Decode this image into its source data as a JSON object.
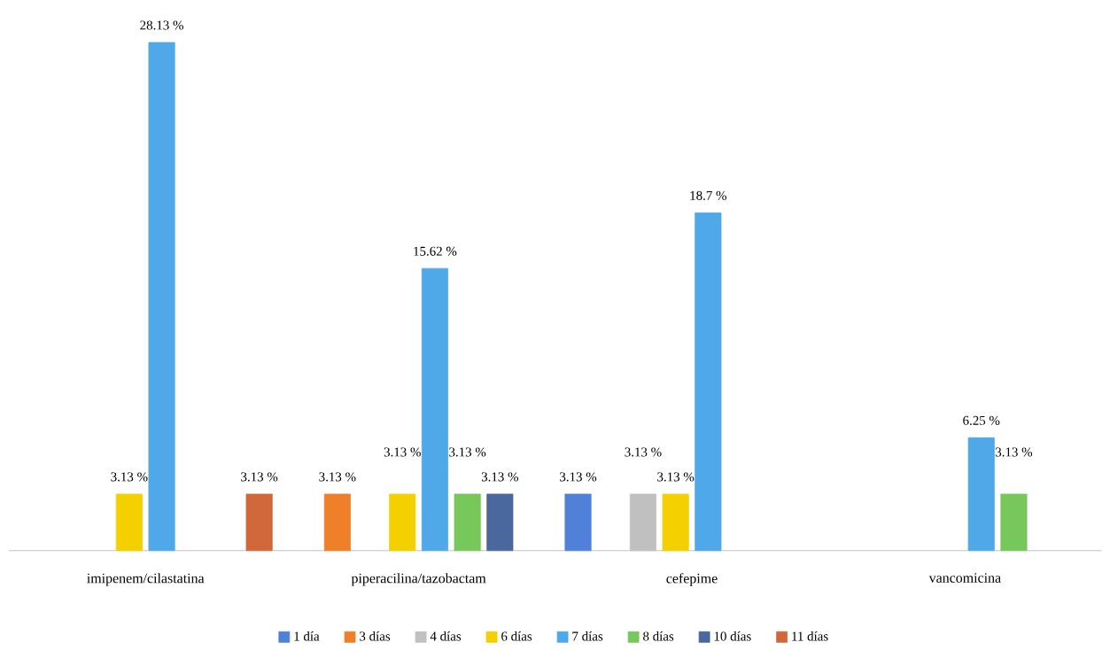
{
  "chart_data": {
    "type": "bar",
    "categories": [
      "imipenem/cilastatina",
      "piperacilina/tazobactam",
      "cefepime",
      "vancomicina"
    ],
    "series": [
      {
        "name": "1 día",
        "color": "#4f81d9",
        "values": [
          null,
          null,
          3.13,
          null
        ],
        "value_labels": [
          null,
          null,
          "3.13 %",
          null
        ]
      },
      {
        "name": "3 días",
        "color": "#f07f2a",
        "values": [
          null,
          3.13,
          null,
          null
        ],
        "value_labels": [
          null,
          "3.13 %",
          null,
          null
        ]
      },
      {
        "name": "4 días",
        "color": "#c0c0c0",
        "values": [
          null,
          null,
          3.13,
          null
        ],
        "value_labels": [
          null,
          null,
          "3.13 %",
          null
        ]
      },
      {
        "name": "6 días",
        "color": "#f5d000",
        "values": [
          3.13,
          3.13,
          3.13,
          null
        ],
        "value_labels": [
          "3.13 %",
          "3.13 %",
          "3.13 %",
          null
        ]
      },
      {
        "name": "7 días",
        "color": "#4fa8e8",
        "values": [
          28.13,
          15.62,
          18.7,
          6.25
        ],
        "value_labels": [
          "28.13 %",
          "15.62 %",
          "18.7 %",
          "6.25 %"
        ]
      },
      {
        "name": "8 días",
        "color": "#77c85a",
        "values": [
          null,
          3.13,
          null,
          3.13
        ],
        "value_labels": [
          null,
          "3.13 %",
          null,
          "3.13 %"
        ]
      },
      {
        "name": "10 días",
        "color": "#4a679e",
        "values": [
          null,
          3.13,
          null,
          null
        ],
        "value_labels": [
          null,
          "3.13 %",
          null,
          null
        ]
      },
      {
        "name": "11 días",
        "color": "#d0683a",
        "values": [
          3.13,
          null,
          null,
          null
        ],
        "value_labels": [
          "3.13 %",
          null,
          null,
          null
        ]
      }
    ],
    "legend": "bottom"
  }
}
